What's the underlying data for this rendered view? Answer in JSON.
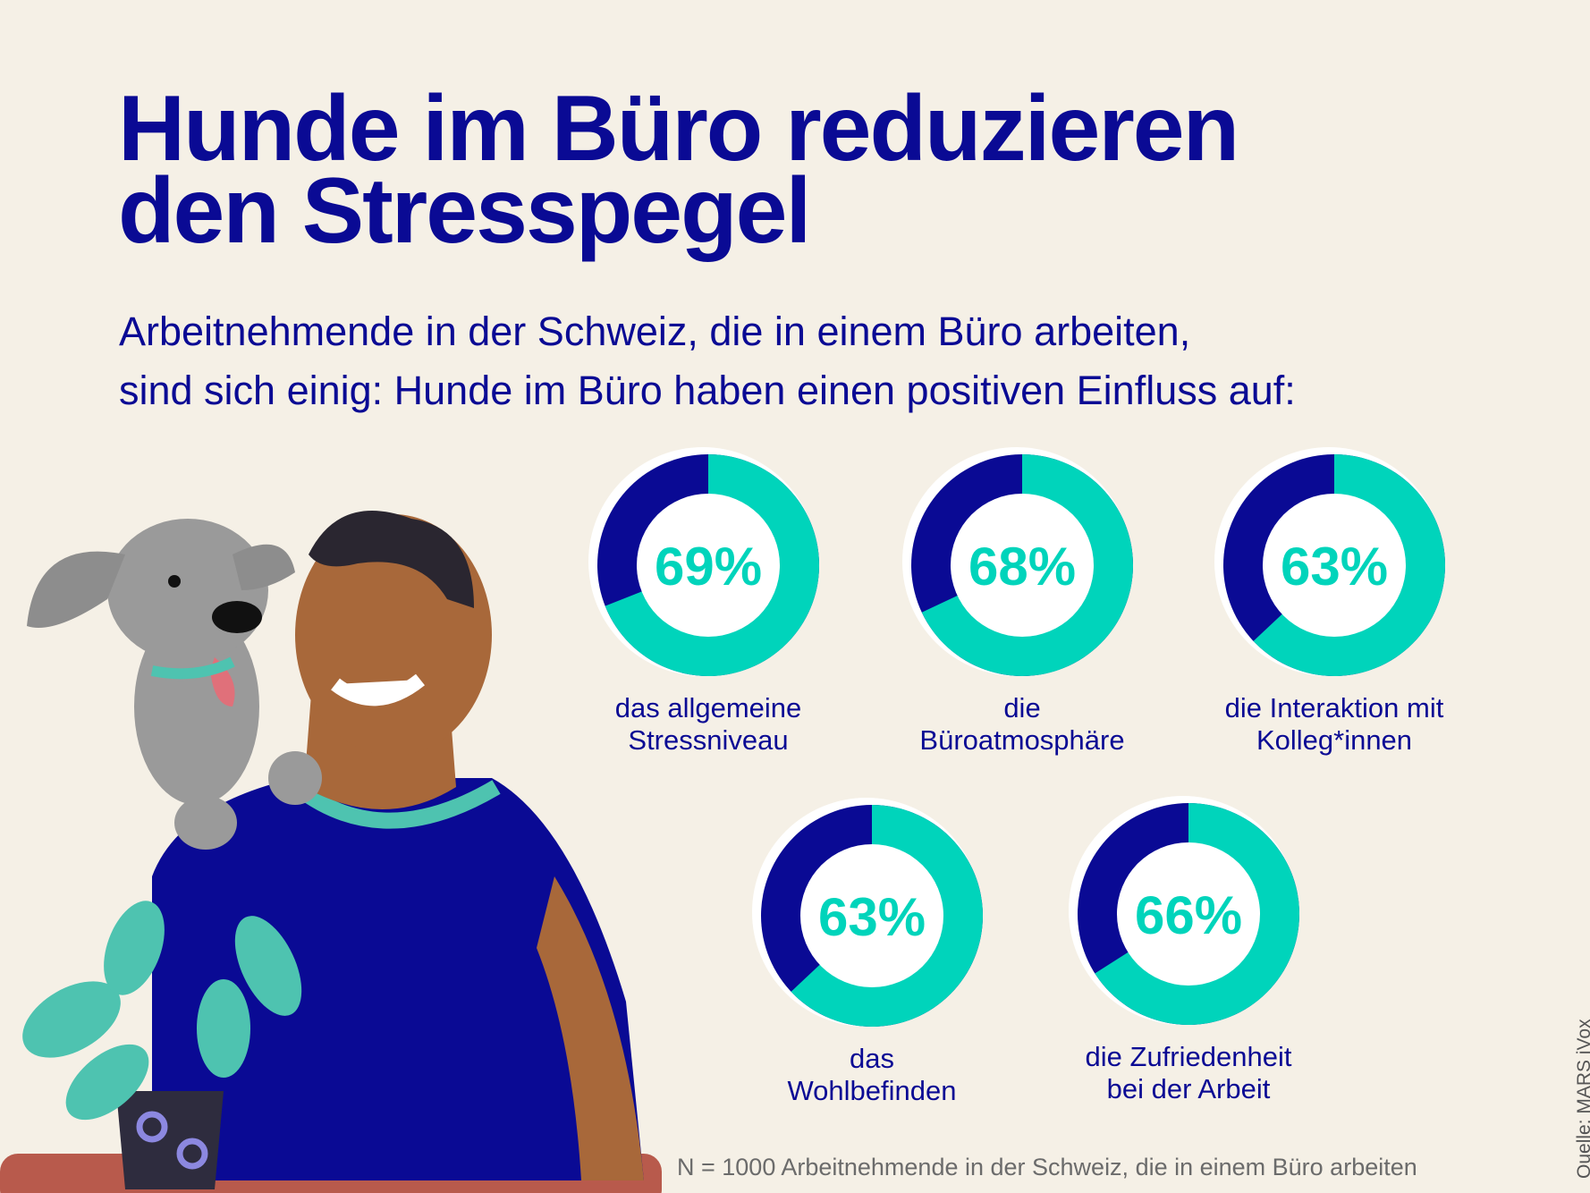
{
  "title_lines": [
    "Hunde im Büro reduzieren",
    "den Stresspegel"
  ],
  "subtitle_lines": [
    "Arbeitnehmende in der Schweiz, die in einem Büro arbeiten,",
    "sind sich einig: Hunde im Büro haben einen positiven Einfluss auf:"
  ],
  "colors": {
    "background": "#f5f0e6",
    "primary": "#0a0a94",
    "accent": "#00d4bb",
    "inner": "#ffffff"
  },
  "chart_data": {
    "type": "pie",
    "style": "donut",
    "unit": "%",
    "items": [
      {
        "value": 69,
        "value_label": "69%",
        "label_lines": [
          "das allgemeine",
          "Stressniveau"
        ]
      },
      {
        "value": 68,
        "value_label": "68%",
        "label_lines": [
          "die",
          "Büroatmosphäre"
        ]
      },
      {
        "value": 63,
        "value_label": "63%",
        "label_lines": [
          "die Interaktion mit",
          "Kolleg*innen"
        ]
      },
      {
        "value": 63,
        "value_label": "63%",
        "label_lines": [
          "das",
          "Wohlbefinden"
        ]
      },
      {
        "value": 66,
        "value_label": "66%",
        "label_lines": [
          "die Zufriedenheit",
          "bei der Arbeit"
        ]
      }
    ]
  },
  "footnote": "N = 1000 Arbeitnehmende in der Schweiz, die in einem Büro arbeiten",
  "source": "Quelle: MARS iVox",
  "illustration": "man-with-dog-and-plant"
}
